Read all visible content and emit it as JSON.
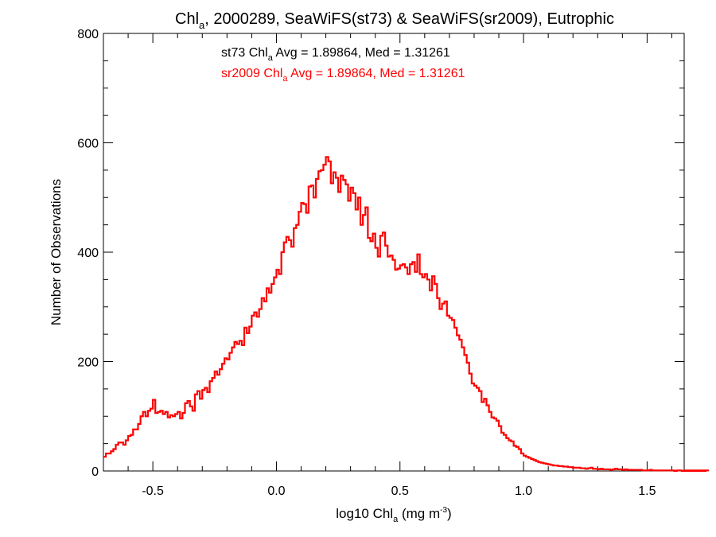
{
  "chart_data": {
    "type": "histogram",
    "title": {
      "prefix": "Chl",
      "sub": "a",
      "suffix": ", 2000289, SeaWiFS(st73) & SeaWiFS(sr2009), Eutrophic"
    },
    "xlabel": {
      "prefix": "log10 Chl",
      "sub": "a",
      "mid": " (mg m",
      "sup": "-3",
      "suffix": ")"
    },
    "ylabel": "Number of Observations",
    "xlim": [
      -0.7,
      1.65
    ],
    "ylim": [
      0,
      800
    ],
    "x_ticks": [
      {
        "value": -0.5,
        "label": "-0.5"
      },
      {
        "value": 0.0,
        "label": "0.0"
      },
      {
        "value": 0.5,
        "label": "0.5"
      },
      {
        "value": 1.0,
        "label": "1.0"
      },
      {
        "value": 1.5,
        "label": "1.5"
      }
    ],
    "y_ticks": [
      {
        "value": 0,
        "label": "0"
      },
      {
        "value": 200,
        "label": "200"
      },
      {
        "value": 400,
        "label": "400"
      },
      {
        "value": 600,
        "label": "600"
      },
      {
        "value": 800,
        "label": "800"
      }
    ],
    "grid": false,
    "stats": [
      {
        "series": "st73",
        "prefix": "st73 Chl",
        "sub": "a",
        "suffix": " Avg = 1.89864, Med = 1.31261",
        "color": "#000000"
      },
      {
        "series": "sr2009",
        "prefix": "sr2009 Chl",
        "sub": "a",
        "suffix": " Avg = 1.89864, Med = 1.31261",
        "color": "#ff0000"
      }
    ],
    "series": [
      {
        "name": "st73",
        "color": "#000000",
        "bin_start": -0.7,
        "bin_width": 0.01,
        "values": [
          26,
          32,
          32,
          36,
          40,
          48,
          52,
          52,
          48,
          56,
          64,
          66,
          76,
          76,
          86,
          100,
          108,
          100,
          110,
          114,
          130,
          106,
          108,
          110,
          104,
          108,
          98,
          102,
          100,
          104,
          108,
          96,
          106,
          124,
          128,
          118,
          110,
          140,
          146,
          132,
          148,
          152,
          144,
          164,
          170,
          182,
          176,
          186,
          196,
          206,
          204,
          216,
          226,
          236,
          232,
          238,
          230,
          262,
          252,
          264,
          284,
          290,
          282,
          296,
          316,
          310,
          334,
          326,
          342,
          354,
          368,
          360,
          400,
          418,
          428,
          422,
          410,
          444,
          450,
          474,
          490,
          488,
          472,
          520,
          522,
          500,
          534,
          548,
          550,
          560,
          574,
          566,
          526,
          546,
          536,
          510,
          540,
          532,
          524,
          494,
          518,
          508,
          478,
          500,
          450,
          468,
          482,
          426,
          420,
          434,
          408,
          392,
          430,
          436,
          412,
          392,
          394,
          386,
          368,
          370,
          376,
          378,
          372,
          360,
          378,
          382,
          364,
          396,
          360,
          354,
          360,
          350,
          330,
          356,
          342,
          316,
          296,
          306,
          310,
          284,
          280,
          276,
          262,
          248,
          240,
          226,
          212,
          198,
          178,
          160,
          156,
          152,
          146,
          126,
          132,
          120,
          108,
          98,
          96,
          92,
          82,
          70,
          66,
          60,
          56,
          54,
          46,
          44,
          40,
          32,
          28,
          26,
          24,
          22,
          20,
          18,
          16,
          15,
          14,
          13,
          12,
          11,
          10,
          10,
          9,
          9,
          8,
          8,
          7,
          7,
          6,
          6,
          6,
          5,
          5,
          4,
          5,
          6,
          4,
          4,
          3,
          4,
          3,
          3,
          3,
          2,
          3,
          4,
          3,
          3,
          2,
          3,
          2,
          2,
          2,
          2,
          2,
          2,
          1,
          1,
          1,
          2,
          1,
          1,
          1,
          1,
          1,
          1,
          1,
          1,
          1,
          0,
          1,
          1,
          0,
          1,
          1,
          0,
          1,
          1,
          0,
          1,
          1,
          0,
          0,
          1
        ]
      },
      {
        "name": "sr2009",
        "color": "#ff0000",
        "bin_start": -0.7,
        "bin_width": 0.01,
        "values": [
          26,
          32,
          32,
          36,
          40,
          48,
          52,
          52,
          48,
          56,
          64,
          66,
          76,
          76,
          86,
          100,
          108,
          100,
          110,
          114,
          130,
          106,
          108,
          110,
          104,
          108,
          98,
          102,
          100,
          104,
          108,
          96,
          106,
          124,
          128,
          118,
          110,
          140,
          146,
          132,
          148,
          152,
          144,
          164,
          170,
          182,
          176,
          186,
          196,
          206,
          204,
          216,
          226,
          236,
          232,
          238,
          230,
          262,
          252,
          264,
          284,
          290,
          282,
          296,
          316,
          310,
          334,
          326,
          342,
          354,
          368,
          360,
          400,
          418,
          428,
          422,
          410,
          444,
          450,
          474,
          490,
          488,
          472,
          520,
          522,
          500,
          534,
          548,
          550,
          560,
          574,
          566,
          526,
          546,
          536,
          510,
          540,
          532,
          524,
          494,
          518,
          508,
          478,
          500,
          450,
          468,
          482,
          426,
          420,
          434,
          408,
          392,
          430,
          436,
          412,
          392,
          394,
          386,
          368,
          370,
          376,
          378,
          372,
          360,
          378,
          382,
          364,
          396,
          360,
          354,
          360,
          350,
          330,
          356,
          342,
          316,
          296,
          306,
          310,
          284,
          280,
          276,
          262,
          248,
          240,
          226,
          212,
          198,
          178,
          160,
          156,
          152,
          146,
          126,
          132,
          120,
          108,
          98,
          96,
          92,
          82,
          70,
          66,
          60,
          56,
          54,
          46,
          44,
          40,
          32,
          28,
          26,
          24,
          22,
          20,
          18,
          16,
          15,
          14,
          13,
          12,
          11,
          10,
          10,
          9,
          9,
          8,
          8,
          7,
          7,
          6,
          6,
          6,
          5,
          5,
          4,
          5,
          6,
          4,
          4,
          3,
          4,
          3,
          3,
          3,
          2,
          3,
          4,
          3,
          3,
          2,
          3,
          2,
          2,
          2,
          2,
          2,
          2,
          1,
          1,
          1,
          2,
          1,
          1,
          1,
          1,
          1,
          1,
          1,
          1,
          1,
          0,
          1,
          1,
          0,
          1,
          1,
          0,
          1,
          1,
          0,
          1,
          1,
          0,
          0,
          1
        ]
      }
    ]
  }
}
